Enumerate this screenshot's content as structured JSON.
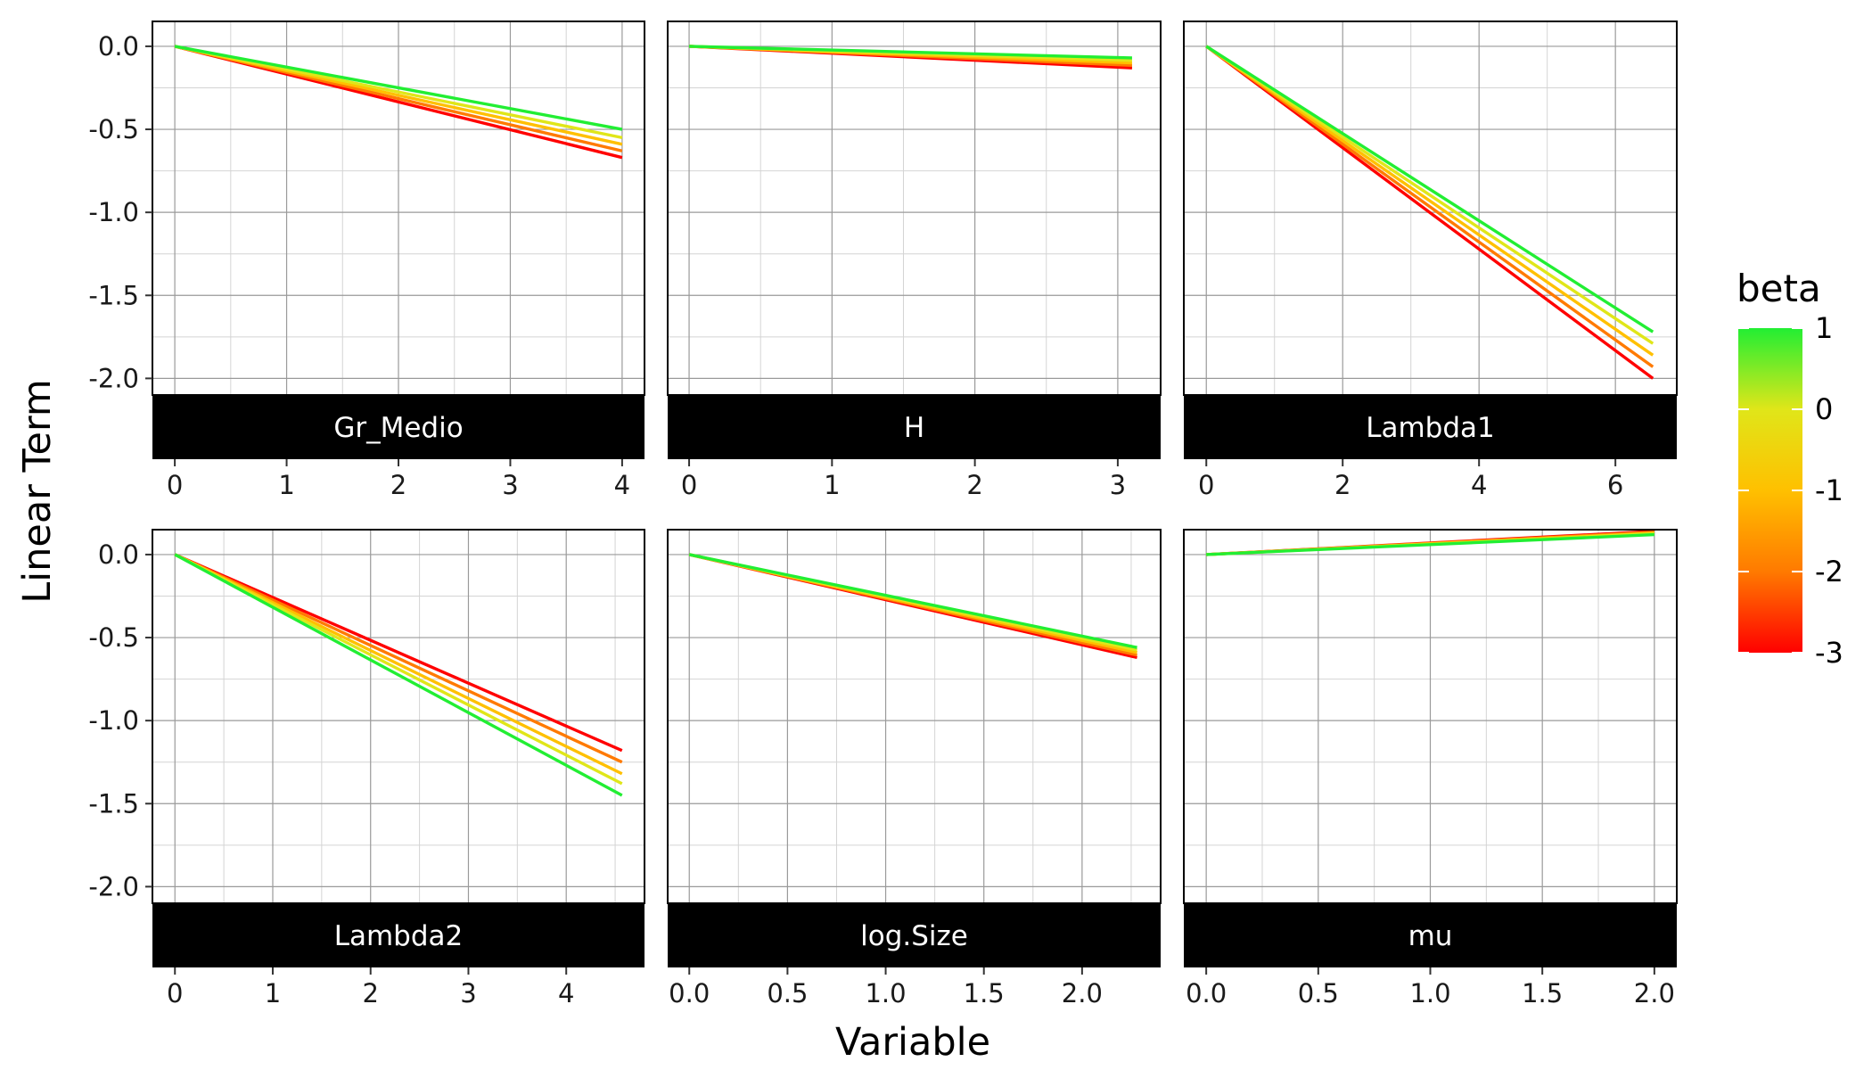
{
  "chart_data": {
    "type": "line",
    "title": "",
    "xlabel": "Variable",
    "ylabel": "Linear Term",
    "ylim": [
      -2.1,
      0.15
    ],
    "yticks": [
      0.0,
      -0.5,
      -1.0,
      -1.5,
      -2.0
    ],
    "ytick_labels": [
      "0.0",
      "-0.5",
      "-1.0",
      "-1.5",
      "-2.0"
    ],
    "grid": true,
    "facets": "wrap, 3 columns, strip labels below panels, free x scales",
    "color_legend": {
      "title": "beta",
      "type": "gradient",
      "placement": "right",
      "ticks": [
        1,
        0,
        -1,
        -2,
        -3
      ],
      "tick_labels": [
        "1",
        "0",
        "-1",
        "-2",
        "-3"
      ],
      "low_color": "#ff0000",
      "mid_color": "#e6e619",
      "high_color": "#22ee33"
    },
    "series_beta": [
      -3,
      -2,
      -1,
      0,
      1
    ],
    "panels": [
      {
        "strip": "Gr_Medio",
        "xlim": [
          -0.2,
          4.2
        ],
        "xticks": [
          0,
          1,
          2,
          3,
          4
        ],
        "xtick_labels": [
          "0",
          "1",
          "2",
          "3",
          "4"
        ],
        "x": [
          0,
          4
        ],
        "end_values": [
          -0.67,
          -0.63,
          -0.59,
          -0.55,
          -0.5
        ]
      },
      {
        "strip": "H",
        "xlim": [
          -0.15,
          3.3
        ],
        "xticks": [
          0,
          1,
          2,
          3
        ],
        "xtick_labels": [
          "0",
          "1",
          "2",
          "3"
        ],
        "x": [
          0,
          3.1
        ],
        "end_values": [
          -0.13,
          -0.115,
          -0.1,
          -0.085,
          -0.07
        ]
      },
      {
        "strip": "Lambda1",
        "xlim": [
          -0.33,
          6.9
        ],
        "xticks": [
          0,
          2,
          4,
          6
        ],
        "xtick_labels": [
          "0",
          "2",
          "4",
          "6"
        ],
        "x": [
          0,
          6.55
        ],
        "end_values": [
          -2.0,
          -1.93,
          -1.86,
          -1.79,
          -1.72
        ]
      },
      {
        "strip": "Lambda2",
        "xlim": [
          -0.23,
          4.8
        ],
        "xticks": [
          0,
          1,
          2,
          3,
          4
        ],
        "xtick_labels": [
          "0",
          "1",
          "2",
          "3",
          "4"
        ],
        "x": [
          0,
          4.57
        ],
        "end_values": [
          -1.18,
          -1.25,
          -1.32,
          -1.38,
          -1.45
        ]
      },
      {
        "strip": "log.Size",
        "xlim": [
          -0.11,
          2.4
        ],
        "xticks": [
          0.0,
          0.5,
          1.0,
          1.5,
          2.0
        ],
        "xtick_labels": [
          "0.0",
          "0.5",
          "1.0",
          "1.5",
          "2.0"
        ],
        "x": [
          0,
          2.28
        ],
        "end_values": [
          -0.62,
          -0.605,
          -0.59,
          -0.575,
          -0.56
        ]
      },
      {
        "strip": "mu",
        "xlim": [
          -0.1,
          2.1
        ],
        "xticks": [
          0.0,
          0.5,
          1.0,
          1.5,
          2.0
        ],
        "xtick_labels": [
          "0.0",
          "0.5",
          "1.0",
          "1.5",
          "2.0"
        ],
        "x": [
          0,
          2.0
        ],
        "end_values": [
          0.14,
          0.135,
          0.13,
          0.125,
          0.12
        ]
      }
    ]
  }
}
